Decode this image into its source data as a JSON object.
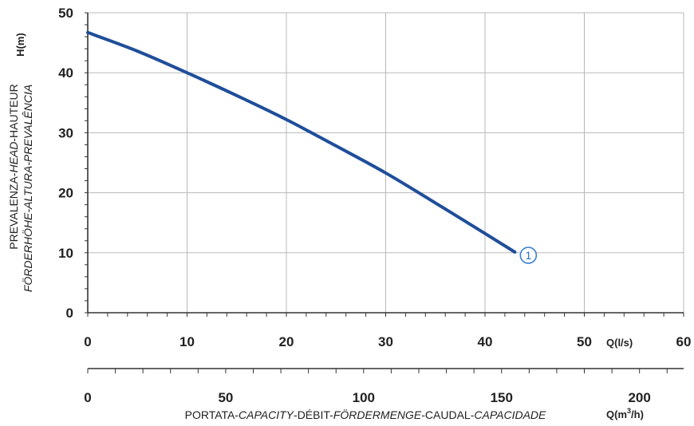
{
  "chart_data": {
    "type": "line",
    "title": "",
    "x_axis_primary": {
      "unit": "Q(l/s)",
      "ticks": [
        0,
        10,
        20,
        30,
        40,
        50,
        60
      ],
      "range": [
        0,
        60
      ],
      "minor_step": 2
    },
    "x_axis_secondary": {
      "unit": "Q(m³/h)",
      "ticks": [
        0,
        50,
        100,
        150,
        200
      ],
      "range": [
        0,
        216
      ],
      "minor_step": 10
    },
    "y_axis": {
      "unit": "H(m)",
      "ticks": [
        0,
        10,
        20,
        30,
        40,
        50
      ],
      "range": [
        0,
        50
      ],
      "minor_step": 2
    },
    "xlabel_parts": [
      {
        "text": "PORTATA-",
        "italic": false
      },
      {
        "text": "CAPACITY",
        "italic": true
      },
      {
        "text": "-DÉBIT-",
        "italic": false
      },
      {
        "text": "FÖRDERMENGE",
        "italic": true
      },
      {
        "text": "-CAUDAL-",
        "italic": false
      },
      {
        "text": "CAPACIDADE",
        "italic": true
      }
    ],
    "ylabel_line1_parts": [
      {
        "text": "PREVALENZA-",
        "italic": false
      },
      {
        "text": "HEAD",
        "italic": true
      },
      {
        "text": "-HAUTEUR",
        "italic": false
      }
    ],
    "ylabel_line2_parts": [
      {
        "text": "FÖRDERHÖHE-ALTURA-PREVALÊNCIA",
        "italic": true
      }
    ],
    "grid": true,
    "series": [
      {
        "label": "1",
        "color": "#1f4e9a",
        "x": [
          0,
          5,
          10,
          15,
          20,
          25,
          30,
          35,
          40,
          43
        ],
        "y": [
          46.7,
          43.6,
          40.0,
          36.2,
          32.2,
          27.8,
          23.3,
          18.3,
          13.2,
          10.1
        ]
      }
    ],
    "colors": {
      "curve": "#1f4e9a",
      "marker_stroke": "#3a7fd5",
      "marker_text": "#2f6fca",
      "grid": "#b8b8b8",
      "axis": "#333333"
    }
  }
}
